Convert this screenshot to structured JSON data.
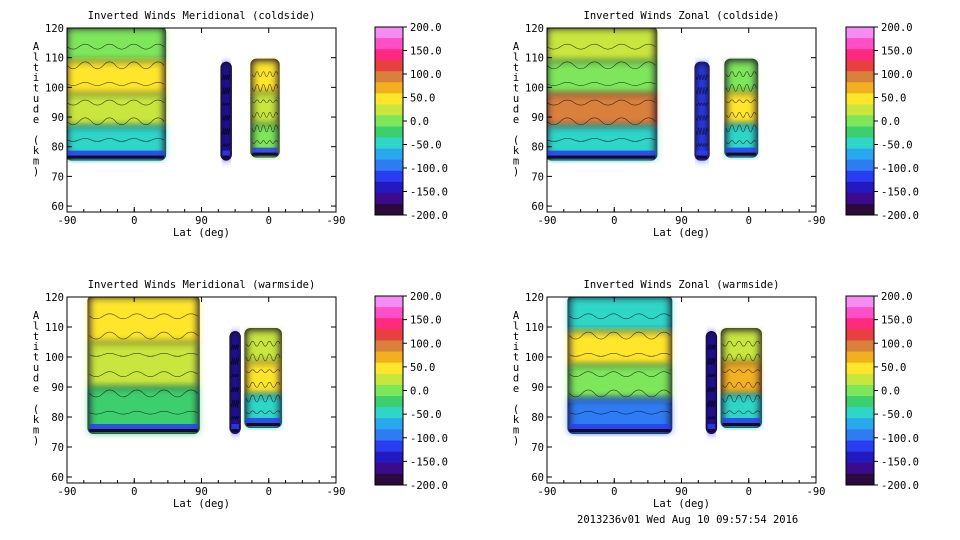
{
  "footer_text": "2013236v01 Wed Aug 10 09:57:54 2016",
  "colorbar": {
    "tick_labels": [
      "200.0",
      "150.0",
      "100.0",
      "50.0",
      "0.0",
      "-50.0",
      "-100.0",
      "-150.0",
      "-200.0"
    ],
    "colors": [
      "#f48cf4",
      "#ff4fc8",
      "#ff2a80",
      "#e8403e",
      "#d9803c",
      "#f2b020",
      "#ffe62a",
      "#c8e63c",
      "#7ee65a",
      "#3ccf6e",
      "#2fd6c8",
      "#28a6ee",
      "#2f7cf2",
      "#2a3cf0",
      "#2418c0",
      "#3c0a8c",
      "#2b0a3c"
    ]
  },
  "chart_data": [
    {
      "type": "heatmap",
      "title": "Inverted Winds Meridional (coldside)",
      "xlabel": "Lat (deg)",
      "ylabel": "Altitude (km)",
      "x_tick_labels": [
        "-90",
        "0",
        "90",
        "0",
        "-90"
      ],
      "y_ticks": [
        60,
        70,
        80,
        90,
        100,
        110,
        120
      ],
      "ylim": [
        58,
        120
      ],
      "value_range": [
        -200,
        200
      ],
      "regions": [
        {
          "x_range": [
            -90,
            40
          ],
          "alt_range": [
            76,
            120
          ],
          "dominant_values": [
            0,
            50,
            25,
            -50
          ]
        },
        {
          "x_range": [
            -12,
            22
          ],
          "alt_range": [
            77,
            109
          ],
          "dominant_values": [
            50,
            25,
            0
          ]
        },
        {
          "x_range": [
            52,
            62
          ],
          "alt_range": [
            76,
            108
          ],
          "dominant_values": [
            -150
          ]
        }
      ]
    },
    {
      "type": "heatmap",
      "title": "Inverted Winds Zonal (coldside)",
      "xlabel": "Lat (deg)",
      "ylabel": "Altitude (km)",
      "x_tick_labels": [
        "-90",
        "0",
        "90",
        "0",
        "-90"
      ],
      "y_ticks": [
        60,
        70,
        80,
        90,
        100,
        110,
        120
      ],
      "ylim": [
        58,
        120
      ],
      "value_range": [
        -200,
        200
      ],
      "regions": [
        {
          "x_range": [
            -90,
            55
          ],
          "alt_range": [
            76,
            120
          ],
          "dominant_values": [
            25,
            0,
            100,
            -50
          ]
        },
        {
          "x_range": [
            -10,
            30
          ],
          "alt_range": [
            77,
            109
          ],
          "dominant_values": [
            0,
            50,
            -50
          ]
        },
        {
          "x_range": [
            55,
            70
          ],
          "alt_range": [
            76,
            108
          ],
          "dominant_values": [
            -120
          ]
        }
      ]
    },
    {
      "type": "heatmap",
      "title": "Inverted Winds Meridional (warmside)",
      "xlabel": "Lat (deg)",
      "ylabel": "Altitude (km)",
      "x_tick_labels": [
        "-90",
        "0",
        "90",
        "0",
        "-90"
      ],
      "y_ticks": [
        60,
        70,
        80,
        90,
        100,
        110,
        120
      ],
      "ylim": [
        58,
        120
      ],
      "value_range": [
        -200,
        200
      ],
      "regions": [
        {
          "x_range": [
            -60,
            85
          ],
          "alt_range": [
            75,
            120
          ],
          "dominant_values": [
            50,
            25,
            -25
          ]
        },
        {
          "x_range": [
            -15,
            30
          ],
          "alt_range": [
            77,
            109
          ],
          "dominant_values": [
            25,
            50,
            -50
          ]
        },
        {
          "x_range": [
            40,
            50
          ],
          "alt_range": [
            75,
            108
          ],
          "dominant_values": [
            -150
          ]
        }
      ]
    },
    {
      "type": "heatmap",
      "title": "Inverted Winds Zonal (warmside)",
      "xlabel": "Lat (deg)",
      "ylabel": "Altitude (km)",
      "x_tick_labels": [
        "-90",
        "0",
        "90",
        "0",
        "-90"
      ],
      "y_ticks": [
        60,
        70,
        80,
        90,
        100,
        110,
        120
      ],
      "ylim": [
        58,
        120
      ],
      "value_range": [
        -200,
        200
      ],
      "regions": [
        {
          "x_range": [
            -60,
            75
          ],
          "alt_range": [
            75,
            120
          ],
          "dominant_values": [
            -50,
            50,
            0,
            -100
          ]
        },
        {
          "x_range": [
            -15,
            35
          ],
          "alt_range": [
            77,
            109
          ],
          "dominant_values": [
            25,
            75,
            -50
          ]
        },
        {
          "x_range": [
            45,
            55
          ],
          "alt_range": [
            75,
            108
          ],
          "dominant_values": [
            -150
          ]
        }
      ]
    }
  ]
}
